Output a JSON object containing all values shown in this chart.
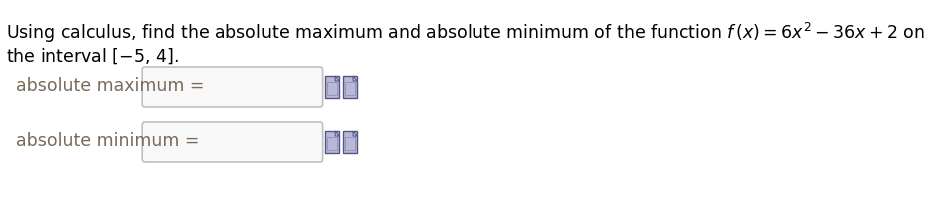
{
  "background_color": "#ffffff",
  "text_color": "#000000",
  "label_color": "#7a6a5a",
  "line1": "Using calculus, find the absolute maximum and absolute minimum of the function $f\\,(x) = 6x^2 - 36x + 2$ on",
  "line2": "the interval $[-5,\\,4]$.",
  "label_max": "absolute maximum =",
  "label_min": "absolute minimum =",
  "figsize": [
    9.31,
    2.16
  ],
  "dpi": 100,
  "fontsize_main": 12.5,
  "fontsize_label": 12.5,
  "box_facecolor": "#f8f8f8",
  "box_edgecolor": "#c0c0c0",
  "icon_face": "#b8b8d8",
  "icon_edge": "#555588"
}
